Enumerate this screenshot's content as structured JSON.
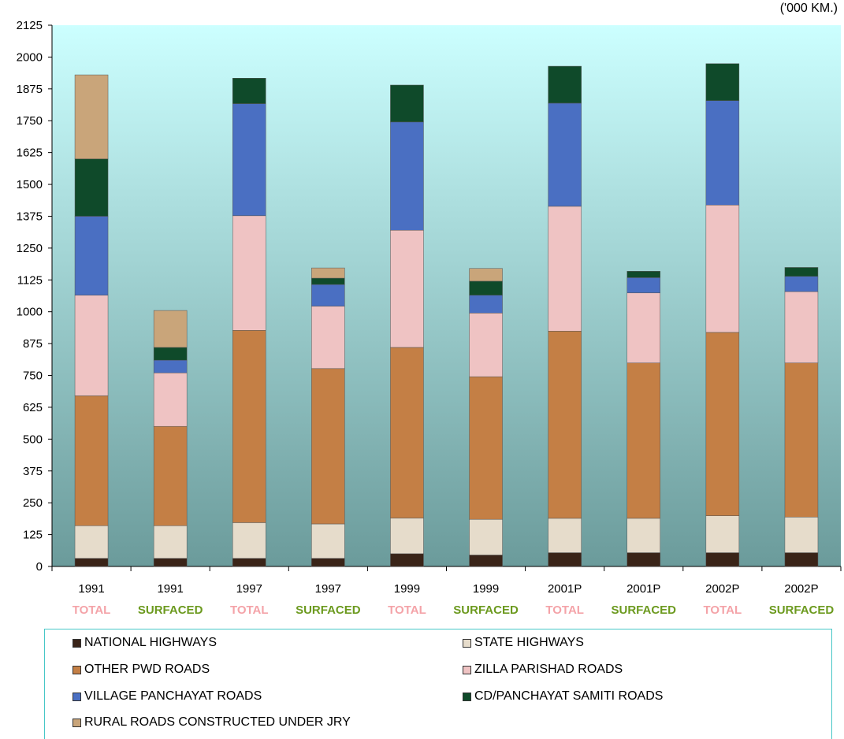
{
  "unit_label": "('000 KM.)",
  "legend": {
    "items": [
      {
        "label": "NATIONAL HIGHWAYS",
        "color": "#3a2418"
      },
      {
        "label": "STATE HIGHWAYS",
        "color": "#e6dccb"
      },
      {
        "label": "OTHER PWD ROADS",
        "color": "#c47f45"
      },
      {
        "label": "ZILLA PARISHAD ROADS",
        "color": "#efc3c3"
      },
      {
        "label": "VILLAGE PANCHAYAT ROADS",
        "color": "#4a6fc2"
      },
      {
        "label": "CD/PANCHAYAT SAMITI ROADS",
        "color": "#0f4a2a"
      },
      {
        "label": "RURAL ROADS CONSTRUCTED UNDER JRY",
        "color": "#c9a57a"
      }
    ]
  },
  "chart_data": {
    "type": "bar",
    "stacked": true,
    "ylim": [
      0,
      2125
    ],
    "yticks": [
      0,
      125,
      250,
      375,
      500,
      625,
      750,
      875,
      1000,
      1125,
      1250,
      1375,
      1500,
      1625,
      1750,
      1875,
      2000,
      2125
    ],
    "categories": [
      {
        "year": "1991",
        "type": "TOTAL"
      },
      {
        "year": "1991",
        "type": "SURFACED"
      },
      {
        "year": "1997",
        "type": "TOTAL"
      },
      {
        "year": "1997",
        "type": "SURFACED"
      },
      {
        "year": "1999",
        "type": "TOTAL"
      },
      {
        "year": "1999",
        "type": "SURFACED"
      },
      {
        "year": "2001P",
        "type": "TOTAL"
      },
      {
        "year": "2001P",
        "type": "SURFACED"
      },
      {
        "year": "2002P",
        "type": "TOTAL"
      },
      {
        "year": "2002P",
        "type": "SURFACED"
      }
    ],
    "category_label_colors": {
      "TOTAL": "#f4a3a8",
      "SURFACED": "#6c9a1f"
    },
    "series": [
      {
        "name": "NATIONAL HIGHWAYS",
        "color": "#3a2418",
        "values": [
          32,
          32,
          32,
          32,
          50,
          45,
          54,
          54,
          54,
          54
        ]
      },
      {
        "name": "STATE HIGHWAYS",
        "color": "#e6dccb",
        "values": [
          128,
          128,
          140,
          135,
          140,
          140,
          135,
          135,
          145,
          140
        ]
      },
      {
        "name": "OTHER PWD ROADS",
        "color": "#c47f45",
        "values": [
          510,
          390,
          755,
          610,
          670,
          560,
          735,
          610,
          720,
          605
        ]
      },
      {
        "name": "ZILLA PARISHAD ROADS",
        "color": "#efc3c3",
        "values": [
          395,
          210,
          450,
          245,
          460,
          250,
          490,
          275,
          500,
          280
        ]
      },
      {
        "name": "VILLAGE PANCHAYAT ROADS",
        "color": "#4a6fc2",
        "values": [
          310,
          50,
          440,
          85,
          425,
          70,
          405,
          60,
          410,
          60
        ]
      },
      {
        "name": "CD/PANCHAYAT SAMITI ROADS",
        "color": "#0f4a2a",
        "values": [
          225,
          50,
          100,
          25,
          145,
          55,
          145,
          25,
          145,
          35
        ]
      },
      {
        "name": "RURAL ROADS CONSTRUCTED UNDER JRY",
        "color": "#c9a57a",
        "values": [
          330,
          145,
          0,
          40,
          0,
          50,
          0,
          0,
          0,
          0
        ]
      }
    ]
  }
}
